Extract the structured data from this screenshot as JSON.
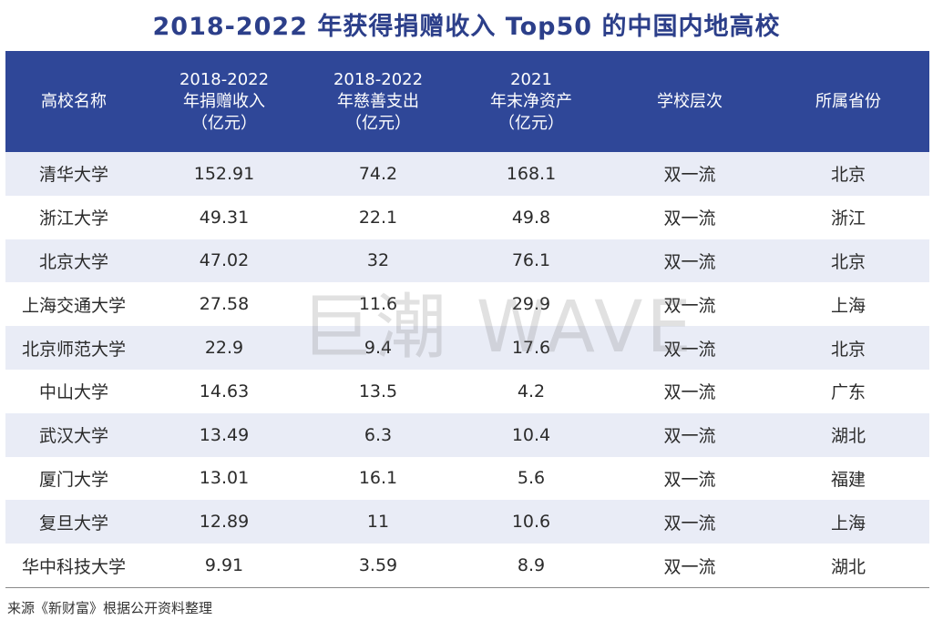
{
  "title": "2018-2022 年获得捐赠收入 Top50 的中国内地高校",
  "columns": [
    {
      "lines": [
        "高校名称"
      ]
    },
    {
      "lines": [
        "2018-2022",
        "年捐赠收入",
        "（亿元）"
      ]
    },
    {
      "lines": [
        "2018-2022",
        "年慈善支出",
        "（亿元）"
      ]
    },
    {
      "lines": [
        "2021",
        "年末净资产",
        "（亿元）"
      ]
    },
    {
      "lines": [
        "学校层次"
      ]
    },
    {
      "lines": [
        "所属省份"
      ]
    }
  ],
  "rows": [
    [
      "清华大学",
      "152.91",
      "74.2",
      "168.1",
      "双一流",
      "北京"
    ],
    [
      "浙江大学",
      "49.31",
      "22.1",
      "49.8",
      "双一流",
      "浙江"
    ],
    [
      "北京大学",
      "47.02",
      "32",
      "76.1",
      "双一流",
      "北京"
    ],
    [
      "上海交通大学",
      "27.58",
      "11.6",
      "29.9",
      "双一流",
      "上海"
    ],
    [
      "北京师范大学",
      "22.9",
      "9.4",
      "17.6",
      "双一流",
      "北京"
    ],
    [
      "中山大学",
      "14.63",
      "13.5",
      "4.2",
      "双一流",
      "广东"
    ],
    [
      "武汉大学",
      "13.49",
      "6.3",
      "10.4",
      "双一流",
      "湖北"
    ],
    [
      "厦门大学",
      "13.01",
      "16.1",
      "5.6",
      "双一流",
      "福建"
    ],
    [
      "复旦大学",
      "12.89",
      "11",
      "10.6",
      "双一流",
      "上海"
    ],
    [
      "华中科技大学",
      "9.91",
      "3.59",
      "8.9",
      "双一流",
      "湖北"
    ]
  ],
  "source": "来源《新财富》根据公开资料整理",
  "watermark": "巨潮 WAVE",
  "colors": {
    "title": "#2c3f8a",
    "header_bg": "#2f4798",
    "stripe": "#e9ecf6"
  },
  "chart_data": {
    "type": "table",
    "title": "2018-2022 年获得捐赠收入 Top50 的中国内地高校",
    "headers": [
      "高校名称",
      "2018-2022年捐赠收入（亿元）",
      "2018-2022年慈善支出（亿元）",
      "2021年末净资产（亿元）",
      "学校层次",
      "所属省份"
    ],
    "rows": [
      [
        "清华大学",
        152.91,
        74.2,
        168.1,
        "双一流",
        "北京"
      ],
      [
        "浙江大学",
        49.31,
        22.1,
        49.8,
        "双一流",
        "浙江"
      ],
      [
        "北京大学",
        47.02,
        32,
        76.1,
        "双一流",
        "北京"
      ],
      [
        "上海交通大学",
        27.58,
        11.6,
        29.9,
        "双一流",
        "上海"
      ],
      [
        "北京师范大学",
        22.9,
        9.4,
        17.6,
        "双一流",
        "北京"
      ],
      [
        "中山大学",
        14.63,
        13.5,
        4.2,
        "双一流",
        "广东"
      ],
      [
        "武汉大学",
        13.49,
        6.3,
        10.4,
        "双一流",
        "湖北"
      ],
      [
        "厦门大学",
        13.01,
        16.1,
        5.6,
        "双一流",
        "福建"
      ],
      [
        "复旦大学",
        12.89,
        11,
        10.6,
        "双一流",
        "上海"
      ],
      [
        "华中科技大学",
        9.91,
        3.59,
        8.9,
        "双一流",
        "湖北"
      ]
    ]
  }
}
